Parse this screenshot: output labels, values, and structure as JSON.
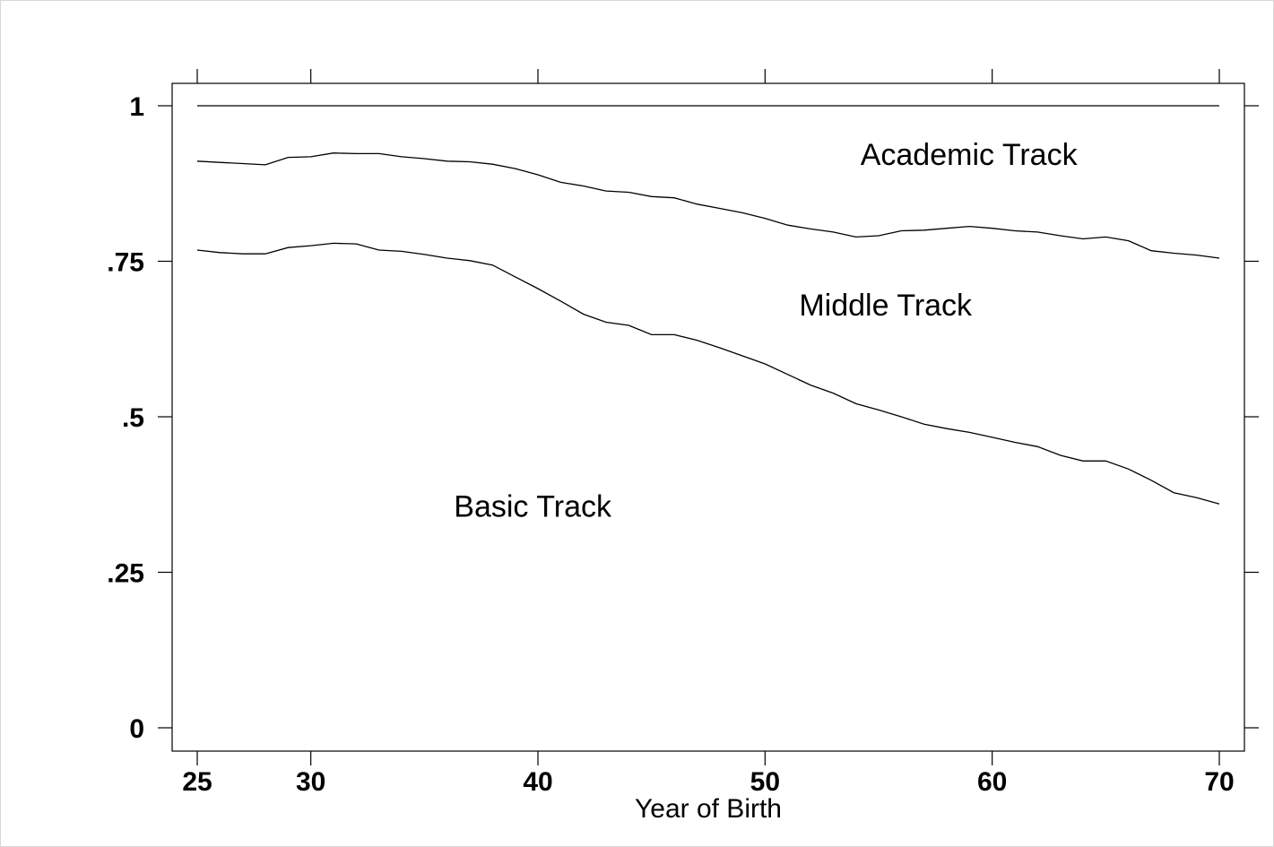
{
  "chart_data": {
    "type": "area",
    "title": "",
    "xlabel": "Year of Birth",
    "ylabel": "",
    "xlim": [
      25,
      70
    ],
    "ylim": [
      0,
      1
    ],
    "x_ticks": [
      25,
      30,
      40,
      50,
      60,
      70
    ],
    "x_tick_labels": [
      "25",
      "30",
      "40",
      "50",
      "60",
      "70"
    ],
    "y_ticks": [
      0,
      0.25,
      0.5,
      0.75,
      1
    ],
    "y_tick_labels": [
      "0",
      ".25",
      ".5",
      ".75",
      "1"
    ],
    "grid": false,
    "x": [
      25,
      26,
      27,
      28,
      29,
      30,
      31,
      32,
      33,
      34,
      35,
      36,
      37,
      38,
      39,
      40,
      41,
      42,
      43,
      44,
      45,
      46,
      47,
      48,
      49,
      50,
      51,
      52,
      53,
      54,
      55,
      56,
      57,
      58,
      59,
      60,
      61,
      62,
      63,
      64,
      65,
      66,
      67,
      68,
      69,
      70
    ],
    "series": [
      {
        "values": [
          0.768,
          0.764,
          0.762,
          0.762,
          0.772,
          0.775,
          0.779,
          0.778,
          0.768,
          0.766,
          0.761,
          0.755,
          0.751,
          0.744,
          0.725,
          0.706,
          0.686,
          0.665,
          0.652,
          0.647,
          0.632,
          0.632,
          0.623,
          0.611,
          0.598,
          0.585,
          0.568,
          0.551,
          0.538,
          0.521,
          0.511,
          0.5,
          0.488,
          0.481,
          0.475,
          0.467,
          0.459,
          0.452,
          0.438,
          0.429,
          0.429,
          0.416,
          0.398,
          0.378,
          0.37,
          0.36
        ]
      },
      {
        "values": [
          0.911,
          0.909,
          0.907,
          0.905,
          0.917,
          0.918,
          0.924,
          0.923,
          0.923,
          0.918,
          0.915,
          0.911,
          0.91,
          0.906,
          0.899,
          0.889,
          0.877,
          0.871,
          0.863,
          0.861,
          0.854,
          0.852,
          0.842,
          0.835,
          0.828,
          0.819,
          0.808,
          0.802,
          0.797,
          0.789,
          0.791,
          0.799,
          0.8,
          0.803,
          0.806,
          0.803,
          0.799,
          0.797,
          0.791,
          0.786,
          0.789,
          0.783,
          0.767,
          0.763,
          0.76,
          0.755
        ]
      },
      {
        "values": [
          1,
          1,
          1,
          1,
          1,
          1,
          1,
          1,
          1,
          1,
          1,
          1,
          1,
          1,
          1,
          1,
          1,
          1,
          1,
          1,
          1,
          1,
          1,
          1,
          1,
          1,
          1,
          1,
          1,
          1,
          1,
          1,
          1,
          1,
          1,
          1,
          1,
          1,
          1,
          1,
          1,
          1,
          1,
          1,
          1,
          1
        ]
      }
    ],
    "annotations": [
      {
        "text": "Academic Track",
        "x": 54.2,
        "y": 0.905
      },
      {
        "text": "Middle Track",
        "x": 51.5,
        "y": 0.663
      },
      {
        "text": "Basic Track",
        "x": 36.3,
        "y": 0.339
      }
    ],
    "legend": "none"
  }
}
